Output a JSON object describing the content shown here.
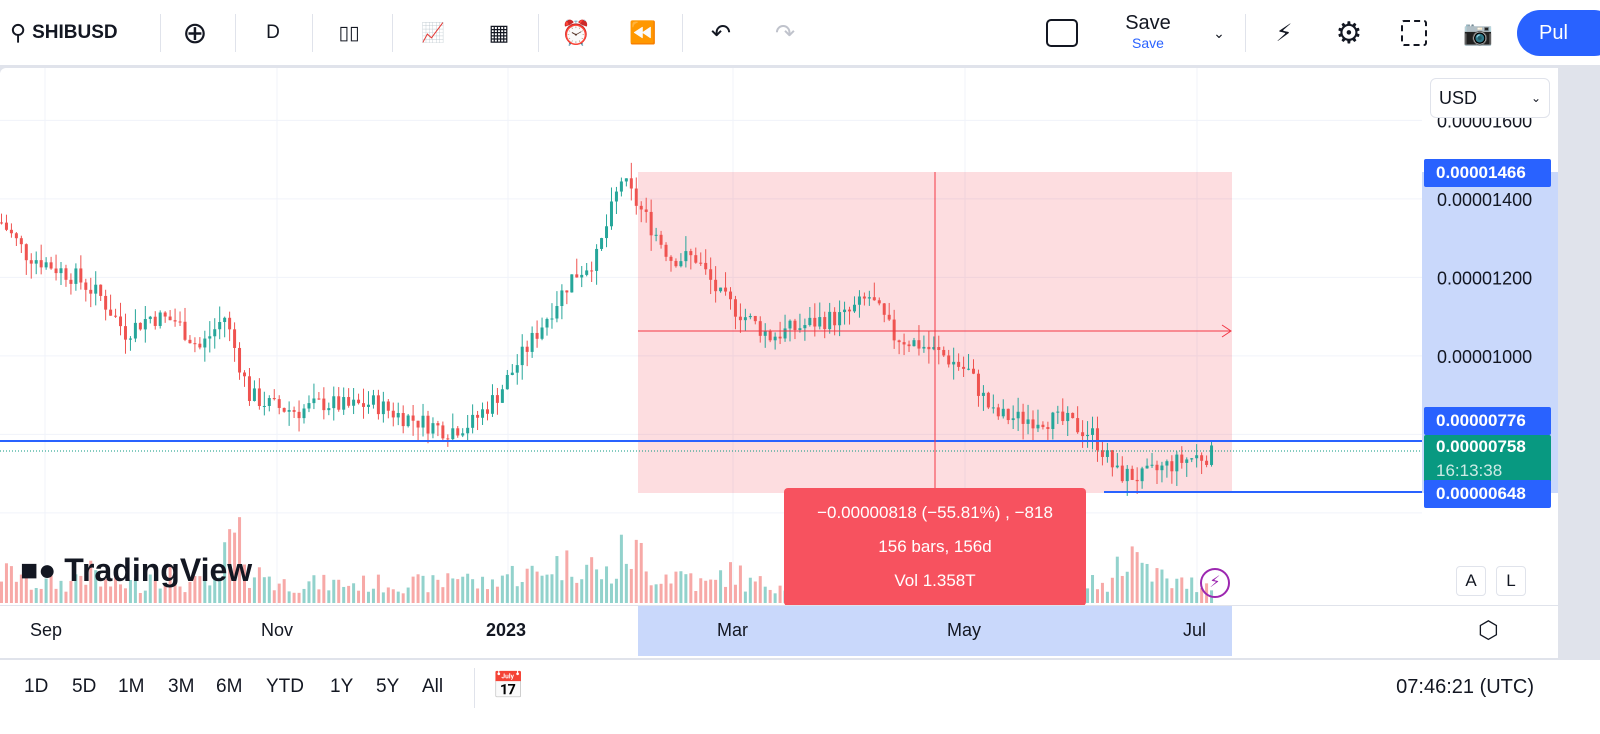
{
  "toolbar": {
    "symbol": "SHIBUSD",
    "interval": "D",
    "save_label": "Save",
    "save_sub": "Save",
    "publish_label": "Pul"
  },
  "price_axis": {
    "currency": "USD",
    "ticks": [
      "0.00001600",
      "0.00001400",
      "0.00001200",
      "0.00001000"
    ],
    "labels": {
      "top": "0.00001466",
      "upper": "0.00000776",
      "current": "0.00000758",
      "countdown": "16:13:38",
      "bottom": "0.00000648"
    }
  },
  "time_axis": {
    "ticks": [
      "Sep",
      "Nov",
      "2023",
      "Mar",
      "May",
      "Jul"
    ]
  },
  "measure": {
    "line1": "−0.00000818 (−55.81%) , −818",
    "line2": "156 bars, 156d",
    "line3": "Vol 1.358T"
  },
  "logo": "TradingView",
  "scale_buttons": {
    "auto": "A",
    "log": "L"
  },
  "bottom": {
    "ranges": [
      "1D",
      "5D",
      "1M",
      "3M",
      "6M",
      "YTD",
      "1Y",
      "5Y",
      "All"
    ],
    "clock": "07:46:21 (UTC)"
  },
  "colors": {
    "up": "#26a69a",
    "down": "#ef5350",
    "accent": "#2962ff",
    "measure": "#f7525f"
  },
  "chart_data": {
    "type": "candlestick",
    "symbol": "SHIBUSD",
    "unit": "1e-8 USD",
    "weekly_closes": [
      1340,
      1260,
      1230,
      1200,
      1150,
      1060,
      1100,
      1090,
      1020,
      1100,
      900,
      870,
      860,
      880,
      870,
      880,
      850,
      830,
      810,
      830,
      900,
      1000,
      1100,
      1200,
      1250,
      1450,
      1350,
      1250,
      1250,
      1150,
      1100,
      1050,
      1070,
      1090,
      1100,
      1150,
      1050,
      1030,
      1000,
      960,
      850,
      840,
      840,
      830,
      800,
      700,
      690,
      720,
      740,
      750
    ],
    "volume_rel": [
      3,
      2,
      2,
      3,
      2,
      2,
      3,
      2,
      2,
      6,
      3,
      2,
      2,
      2,
      2,
      2,
      2,
      2,
      3,
      2,
      3,
      3,
      4,
      4,
      3,
      5,
      3,
      3,
      2,
      3,
      2,
      2,
      2,
      2,
      2,
      3,
      2,
      2,
      2,
      2,
      3,
      2,
      2,
      2,
      2,
      5,
      3,
      2,
      2,
      2
    ]
  }
}
